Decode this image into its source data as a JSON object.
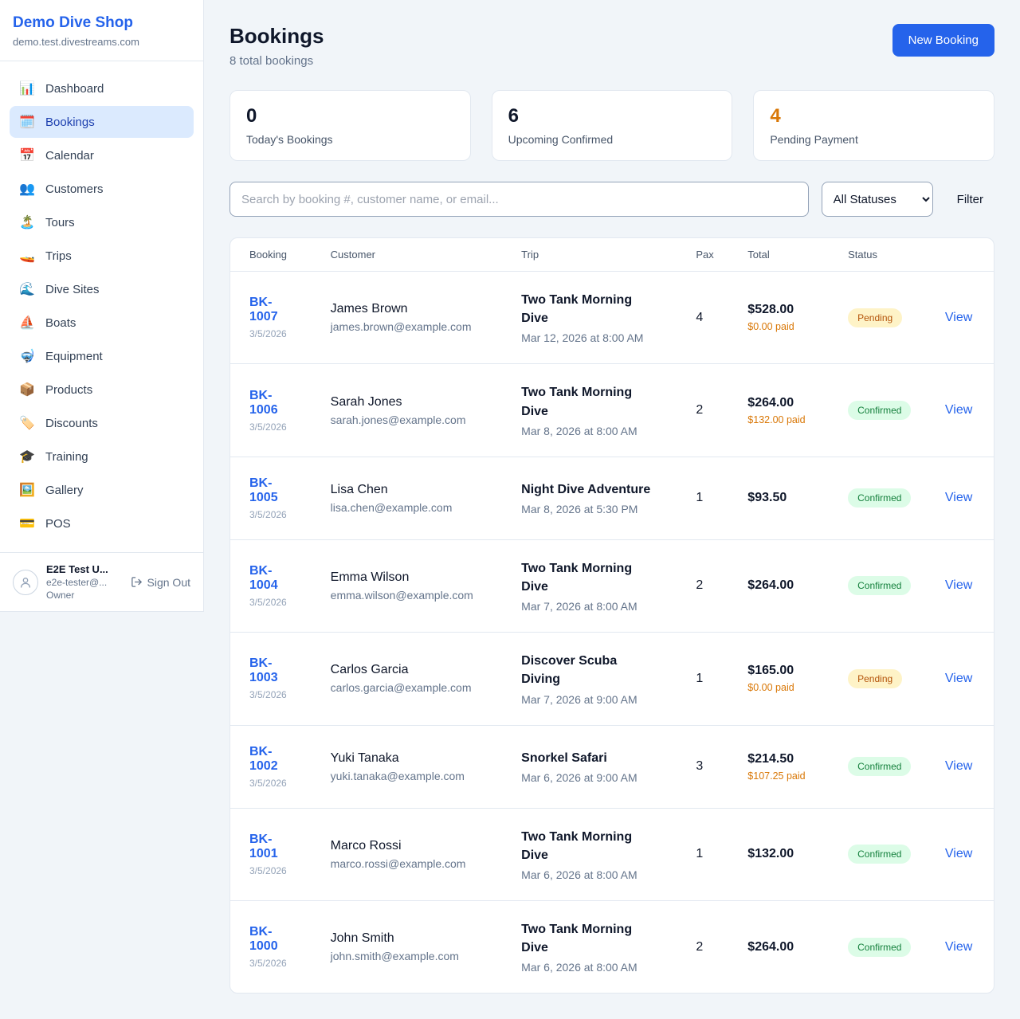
{
  "colors": {
    "accent": "#2563eb",
    "pending": "#d97706",
    "confirmed": "#15803d"
  },
  "sidebar": {
    "shop_name": "Demo Dive Shop",
    "shop_domain": "demo.test.divestreams.com",
    "items": [
      {
        "id": "dashboard",
        "label": "Dashboard",
        "icon": "📊",
        "active": false
      },
      {
        "id": "bookings",
        "label": "Bookings",
        "icon": "🗓️",
        "active": true
      },
      {
        "id": "calendar",
        "label": "Calendar",
        "icon": "📅",
        "active": false
      },
      {
        "id": "customers",
        "label": "Customers",
        "icon": "👥",
        "active": false
      },
      {
        "id": "tours",
        "label": "Tours",
        "icon": "🏝️",
        "active": false
      },
      {
        "id": "trips",
        "label": "Trips",
        "icon": "🚤",
        "active": false
      },
      {
        "id": "dive-sites",
        "label": "Dive Sites",
        "icon": "🌊",
        "active": false
      },
      {
        "id": "boats",
        "label": "Boats",
        "icon": "⛵",
        "active": false
      },
      {
        "id": "equipment",
        "label": "Equipment",
        "icon": "🤿",
        "active": false
      },
      {
        "id": "products",
        "label": "Products",
        "icon": "📦",
        "active": false
      },
      {
        "id": "discounts",
        "label": "Discounts",
        "icon": "🏷️",
        "active": false
      },
      {
        "id": "training",
        "label": "Training",
        "icon": "🎓",
        "active": false
      },
      {
        "id": "gallery",
        "label": "Gallery",
        "icon": "🖼️",
        "active": false
      },
      {
        "id": "pos",
        "label": "POS",
        "icon": "💳",
        "active": false
      }
    ],
    "user": {
      "name": "E2E Test U...",
      "email": "e2e-tester@...",
      "role": "Owner",
      "sign_out_label": "Sign Out"
    }
  },
  "header": {
    "title": "Bookings",
    "subtitle": "8 total bookings",
    "new_booking_label": "New Booking"
  },
  "stats": [
    {
      "id": "todays-bookings",
      "value": "0",
      "label": "Today's Bookings",
      "value_color": "#0f172a"
    },
    {
      "id": "upcoming-confirmed",
      "value": "6",
      "label": "Upcoming Confirmed",
      "value_color": "#0f172a"
    },
    {
      "id": "pending-payment",
      "value": "4",
      "label": "Pending Payment",
      "value_color": "#d97706"
    }
  ],
  "filters": {
    "search_placeholder": "Search by booking #, customer name, or email...",
    "status_selected": "All Statuses",
    "filter_label": "Filter"
  },
  "table": {
    "columns": [
      "Booking",
      "Customer",
      "Trip",
      "Pax",
      "Total",
      "Status"
    ],
    "view_label": "View",
    "rows": [
      {
        "booking_id": "BK-1007",
        "booking_date": "3/5/2026",
        "customer_name": "James Brown",
        "customer_email": "james.brown@example.com",
        "trip_name": "Two Tank Morning Dive",
        "trip_datetime": "Mar 12, 2026 at 8:00 AM",
        "pax": "4",
        "total": "$528.00",
        "paid": "$0.00 paid",
        "status": "Pending"
      },
      {
        "booking_id": "BK-1006",
        "booking_date": "3/5/2026",
        "customer_name": "Sarah Jones",
        "customer_email": "sarah.jones@example.com",
        "trip_name": "Two Tank Morning Dive",
        "trip_datetime": "Mar 8, 2026 at 8:00 AM",
        "pax": "2",
        "total": "$264.00",
        "paid": "$132.00 paid",
        "status": "Confirmed"
      },
      {
        "booking_id": "BK-1005",
        "booking_date": "3/5/2026",
        "customer_name": "Lisa Chen",
        "customer_email": "lisa.chen@example.com",
        "trip_name": "Night Dive Adventure",
        "trip_datetime": "Mar 8, 2026 at 5:30 PM",
        "pax": "1",
        "total": "$93.50",
        "paid": null,
        "status": "Confirmed"
      },
      {
        "booking_id": "BK-1004",
        "booking_date": "3/5/2026",
        "customer_name": "Emma Wilson",
        "customer_email": "emma.wilson@example.com",
        "trip_name": "Two Tank Morning Dive",
        "trip_datetime": "Mar 7, 2026 at 8:00 AM",
        "pax": "2",
        "total": "$264.00",
        "paid": null,
        "status": "Confirmed"
      },
      {
        "booking_id": "BK-1003",
        "booking_date": "3/5/2026",
        "customer_name": "Carlos Garcia",
        "customer_email": "carlos.garcia@example.com",
        "trip_name": "Discover Scuba Diving",
        "trip_datetime": "Mar 7, 2026 at 9:00 AM",
        "pax": "1",
        "total": "$165.00",
        "paid": "$0.00 paid",
        "status": "Pending"
      },
      {
        "booking_id": "BK-1002",
        "booking_date": "3/5/2026",
        "customer_name": "Yuki Tanaka",
        "customer_email": "yuki.tanaka@example.com",
        "trip_name": "Snorkel Safari",
        "trip_datetime": "Mar 6, 2026 at 9:00 AM",
        "pax": "3",
        "total": "$214.50",
        "paid": "$107.25 paid",
        "status": "Confirmed"
      },
      {
        "booking_id": "BK-1001",
        "booking_date": "3/5/2026",
        "customer_name": "Marco Rossi",
        "customer_email": "marco.rossi@example.com",
        "trip_name": "Two Tank Morning Dive",
        "trip_datetime": "Mar 6, 2026 at 8:00 AM",
        "pax": "1",
        "total": "$132.00",
        "paid": null,
        "status": "Confirmed"
      },
      {
        "booking_id": "BK-1000",
        "booking_date": "3/5/2026",
        "customer_name": "John Smith",
        "customer_email": "john.smith@example.com",
        "trip_name": "Two Tank Morning Dive",
        "trip_datetime": "Mar 6, 2026 at 8:00 AM",
        "pax": "2",
        "total": "$264.00",
        "paid": null,
        "status": "Confirmed"
      }
    ]
  }
}
